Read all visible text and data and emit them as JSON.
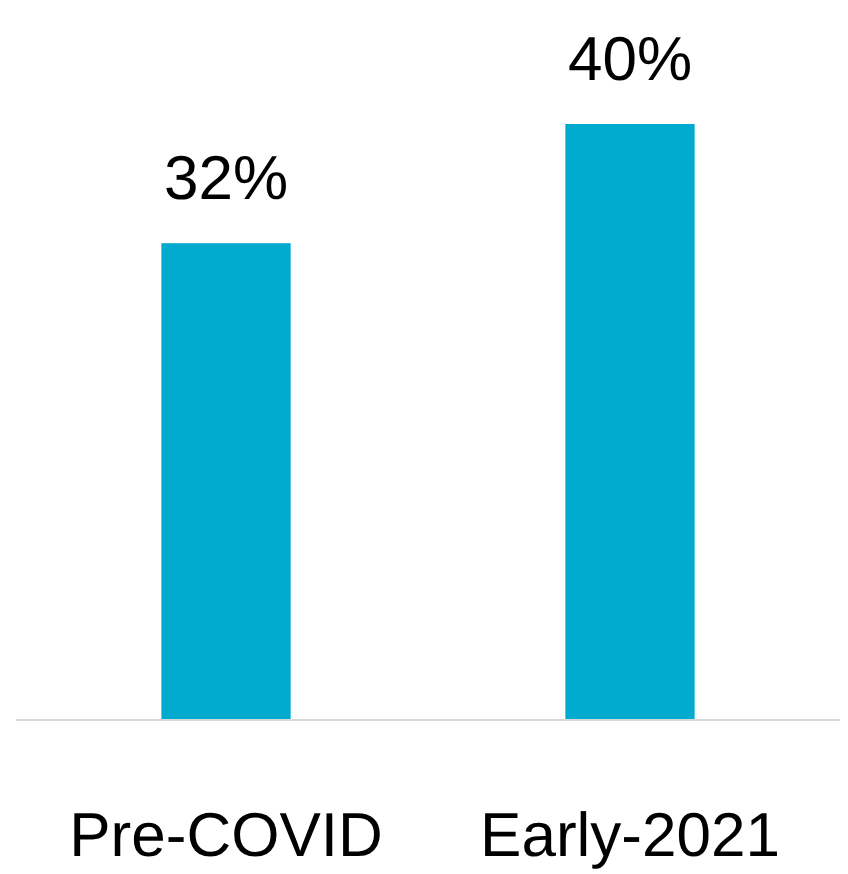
{
  "chart_data": {
    "type": "bar",
    "categories": [
      "Pre-COVID",
      "Early-2021"
    ],
    "values": [
      32,
      40
    ],
    "value_labels": [
      "32%",
      "40%"
    ],
    "color": "#00aace"
  }
}
